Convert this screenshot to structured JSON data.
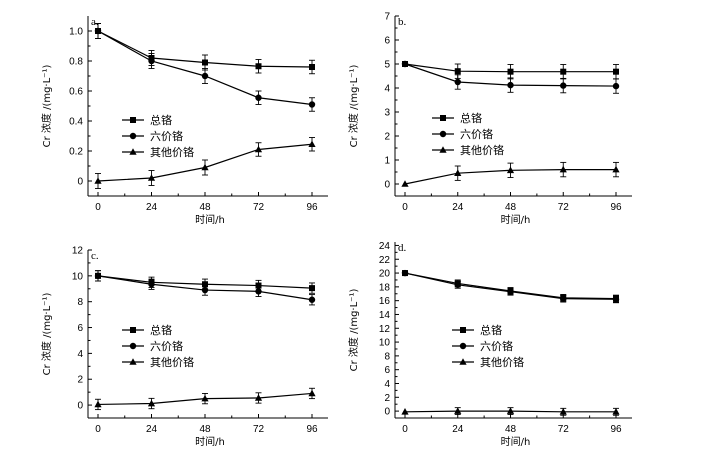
{
  "chart_data": [
    {
      "panel": "a.",
      "type": "line",
      "x": [
        0,
        24,
        48,
        72,
        96
      ],
      "xticks": [
        "0",
        "24",
        "48",
        "72",
        "96"
      ],
      "yticks": [
        "0",
        "0.2",
        "0.4",
        "0.6",
        "0.8",
        "1.0"
      ],
      "ylim": [
        -0.1,
        1.1
      ],
      "ytick_values": [
        0,
        0.2,
        0.4,
        0.6,
        0.8,
        1.0
      ],
      "xlabel": "时间/h",
      "ylabel": "Cr 浓度 /(mg·L⁻¹)",
      "legend": [
        "总铬",
        "六价铬",
        "其他价铬"
      ],
      "series": [
        {
          "name": "总铬",
          "marker": "square",
          "values": [
            1.0,
            0.82,
            0.79,
            0.765,
            0.76
          ],
          "errors": [
            0.05,
            0.05,
            0.05,
            0.045,
            0.045
          ]
        },
        {
          "name": "六价铬",
          "marker": "circle",
          "values": [
            1.0,
            0.8,
            0.7,
            0.555,
            0.51
          ],
          "errors": [
            0.05,
            0.05,
            0.05,
            0.045,
            0.045
          ]
        },
        {
          "name": "其他价铬",
          "marker": "triangle",
          "values": [
            0.0,
            0.02,
            0.09,
            0.21,
            0.245
          ],
          "errors": [
            0.05,
            0.05,
            0.05,
            0.045,
            0.045
          ]
        }
      ]
    },
    {
      "panel": "b.",
      "type": "line",
      "x": [
        0,
        24,
        48,
        72,
        96
      ],
      "xticks": [
        "0",
        "24",
        "48",
        "72",
        "96"
      ],
      "yticks": [
        "0",
        "1",
        "2",
        "3",
        "4",
        "5",
        "6",
        "7"
      ],
      "ylim": [
        -0.5,
        7
      ],
      "ytick_values": [
        0,
        1,
        2,
        3,
        4,
        5,
        6,
        7
      ],
      "xlabel": "时间/h",
      "ylabel": "Cr 浓度 /(mg·L⁻¹)",
      "legend": [
        "总铬",
        "六价铬",
        "其他价铬"
      ],
      "series": [
        {
          "name": "总铬",
          "marker": "square",
          "values": [
            5.0,
            4.7,
            4.68,
            4.68,
            4.68
          ],
          "errors": [
            0.0,
            0.3,
            0.3,
            0.3,
            0.3
          ]
        },
        {
          "name": "六价铬",
          "marker": "circle",
          "values": [
            5.0,
            4.25,
            4.12,
            4.1,
            4.08
          ],
          "errors": [
            0.0,
            0.3,
            0.3,
            0.3,
            0.3
          ]
        },
        {
          "name": "其他价铬",
          "marker": "triangle",
          "values": [
            0.0,
            0.45,
            0.57,
            0.6,
            0.6
          ],
          "errors": [
            0.0,
            0.3,
            0.3,
            0.3,
            0.3
          ]
        }
      ]
    },
    {
      "panel": "c.",
      "type": "line",
      "x": [
        0,
        24,
        48,
        72,
        96
      ],
      "xticks": [
        "0",
        "24",
        "48",
        "72",
        "96"
      ],
      "yticks": [
        "0",
        "2",
        "4",
        "6",
        "8",
        "10",
        "12"
      ],
      "ylim": [
        -1,
        12
      ],
      "ytick_values": [
        0,
        2,
        4,
        6,
        8,
        10,
        12
      ],
      "xlabel": "时间/h",
      "ylabel": "Cr 浓度 /(mg·L⁻¹)",
      "legend": [
        "总铬",
        "六价铬",
        "其他价铬"
      ],
      "series": [
        {
          "name": "总铬",
          "marker": "square",
          "values": [
            10.0,
            9.5,
            9.35,
            9.25,
            9.05
          ],
          "errors": [
            0.4,
            0.4,
            0.4,
            0.4,
            0.4
          ]
        },
        {
          "name": "六价铬",
          "marker": "circle",
          "values": [
            10.0,
            9.35,
            8.9,
            8.8,
            8.15
          ],
          "errors": [
            0.4,
            0.4,
            0.4,
            0.4,
            0.4
          ]
        },
        {
          "name": "其他价铬",
          "marker": "triangle",
          "values": [
            0.05,
            0.12,
            0.5,
            0.55,
            0.9
          ],
          "errors": [
            0.4,
            0.4,
            0.4,
            0.4,
            0.4
          ]
        }
      ]
    },
    {
      "panel": "d.",
      "type": "line",
      "x": [
        0,
        24,
        48,
        72,
        96
      ],
      "xticks": [
        "0",
        "24",
        "48",
        "72",
        "96"
      ],
      "yticks": [
        "0",
        "2",
        "4",
        "6",
        "8",
        "10",
        "12",
        "14",
        "16",
        "18",
        "20",
        "22",
        "24"
      ],
      "ylim": [
        -1,
        24.5
      ],
      "ytick_values": [
        0,
        2,
        4,
        6,
        8,
        10,
        12,
        14,
        16,
        18,
        20,
        22,
        24
      ],
      "xlabel": "时间/h",
      "ylabel": "Cr 浓度 /(mg·L⁻¹)",
      "legend": [
        "总铬",
        "六价铬",
        "其他价铬"
      ],
      "series": [
        {
          "name": "总铬",
          "marker": "square",
          "values": [
            20.0,
            18.5,
            17.4,
            16.4,
            16.3
          ],
          "errors": [
            0.0,
            0.5,
            0.5,
            0.5,
            0.5
          ]
        },
        {
          "name": "六价铬",
          "marker": "circle",
          "values": [
            20.0,
            18.3,
            17.3,
            16.3,
            16.2
          ],
          "errors": [
            0.0,
            0.5,
            0.5,
            0.5,
            0.5
          ]
        },
        {
          "name": "其他价铬",
          "marker": "triangle",
          "values": [
            -0.1,
            0.0,
            0.0,
            -0.1,
            -0.1
          ],
          "errors": [
            0.0,
            0.5,
            0.5,
            0.5,
            0.5
          ]
        }
      ]
    }
  ]
}
